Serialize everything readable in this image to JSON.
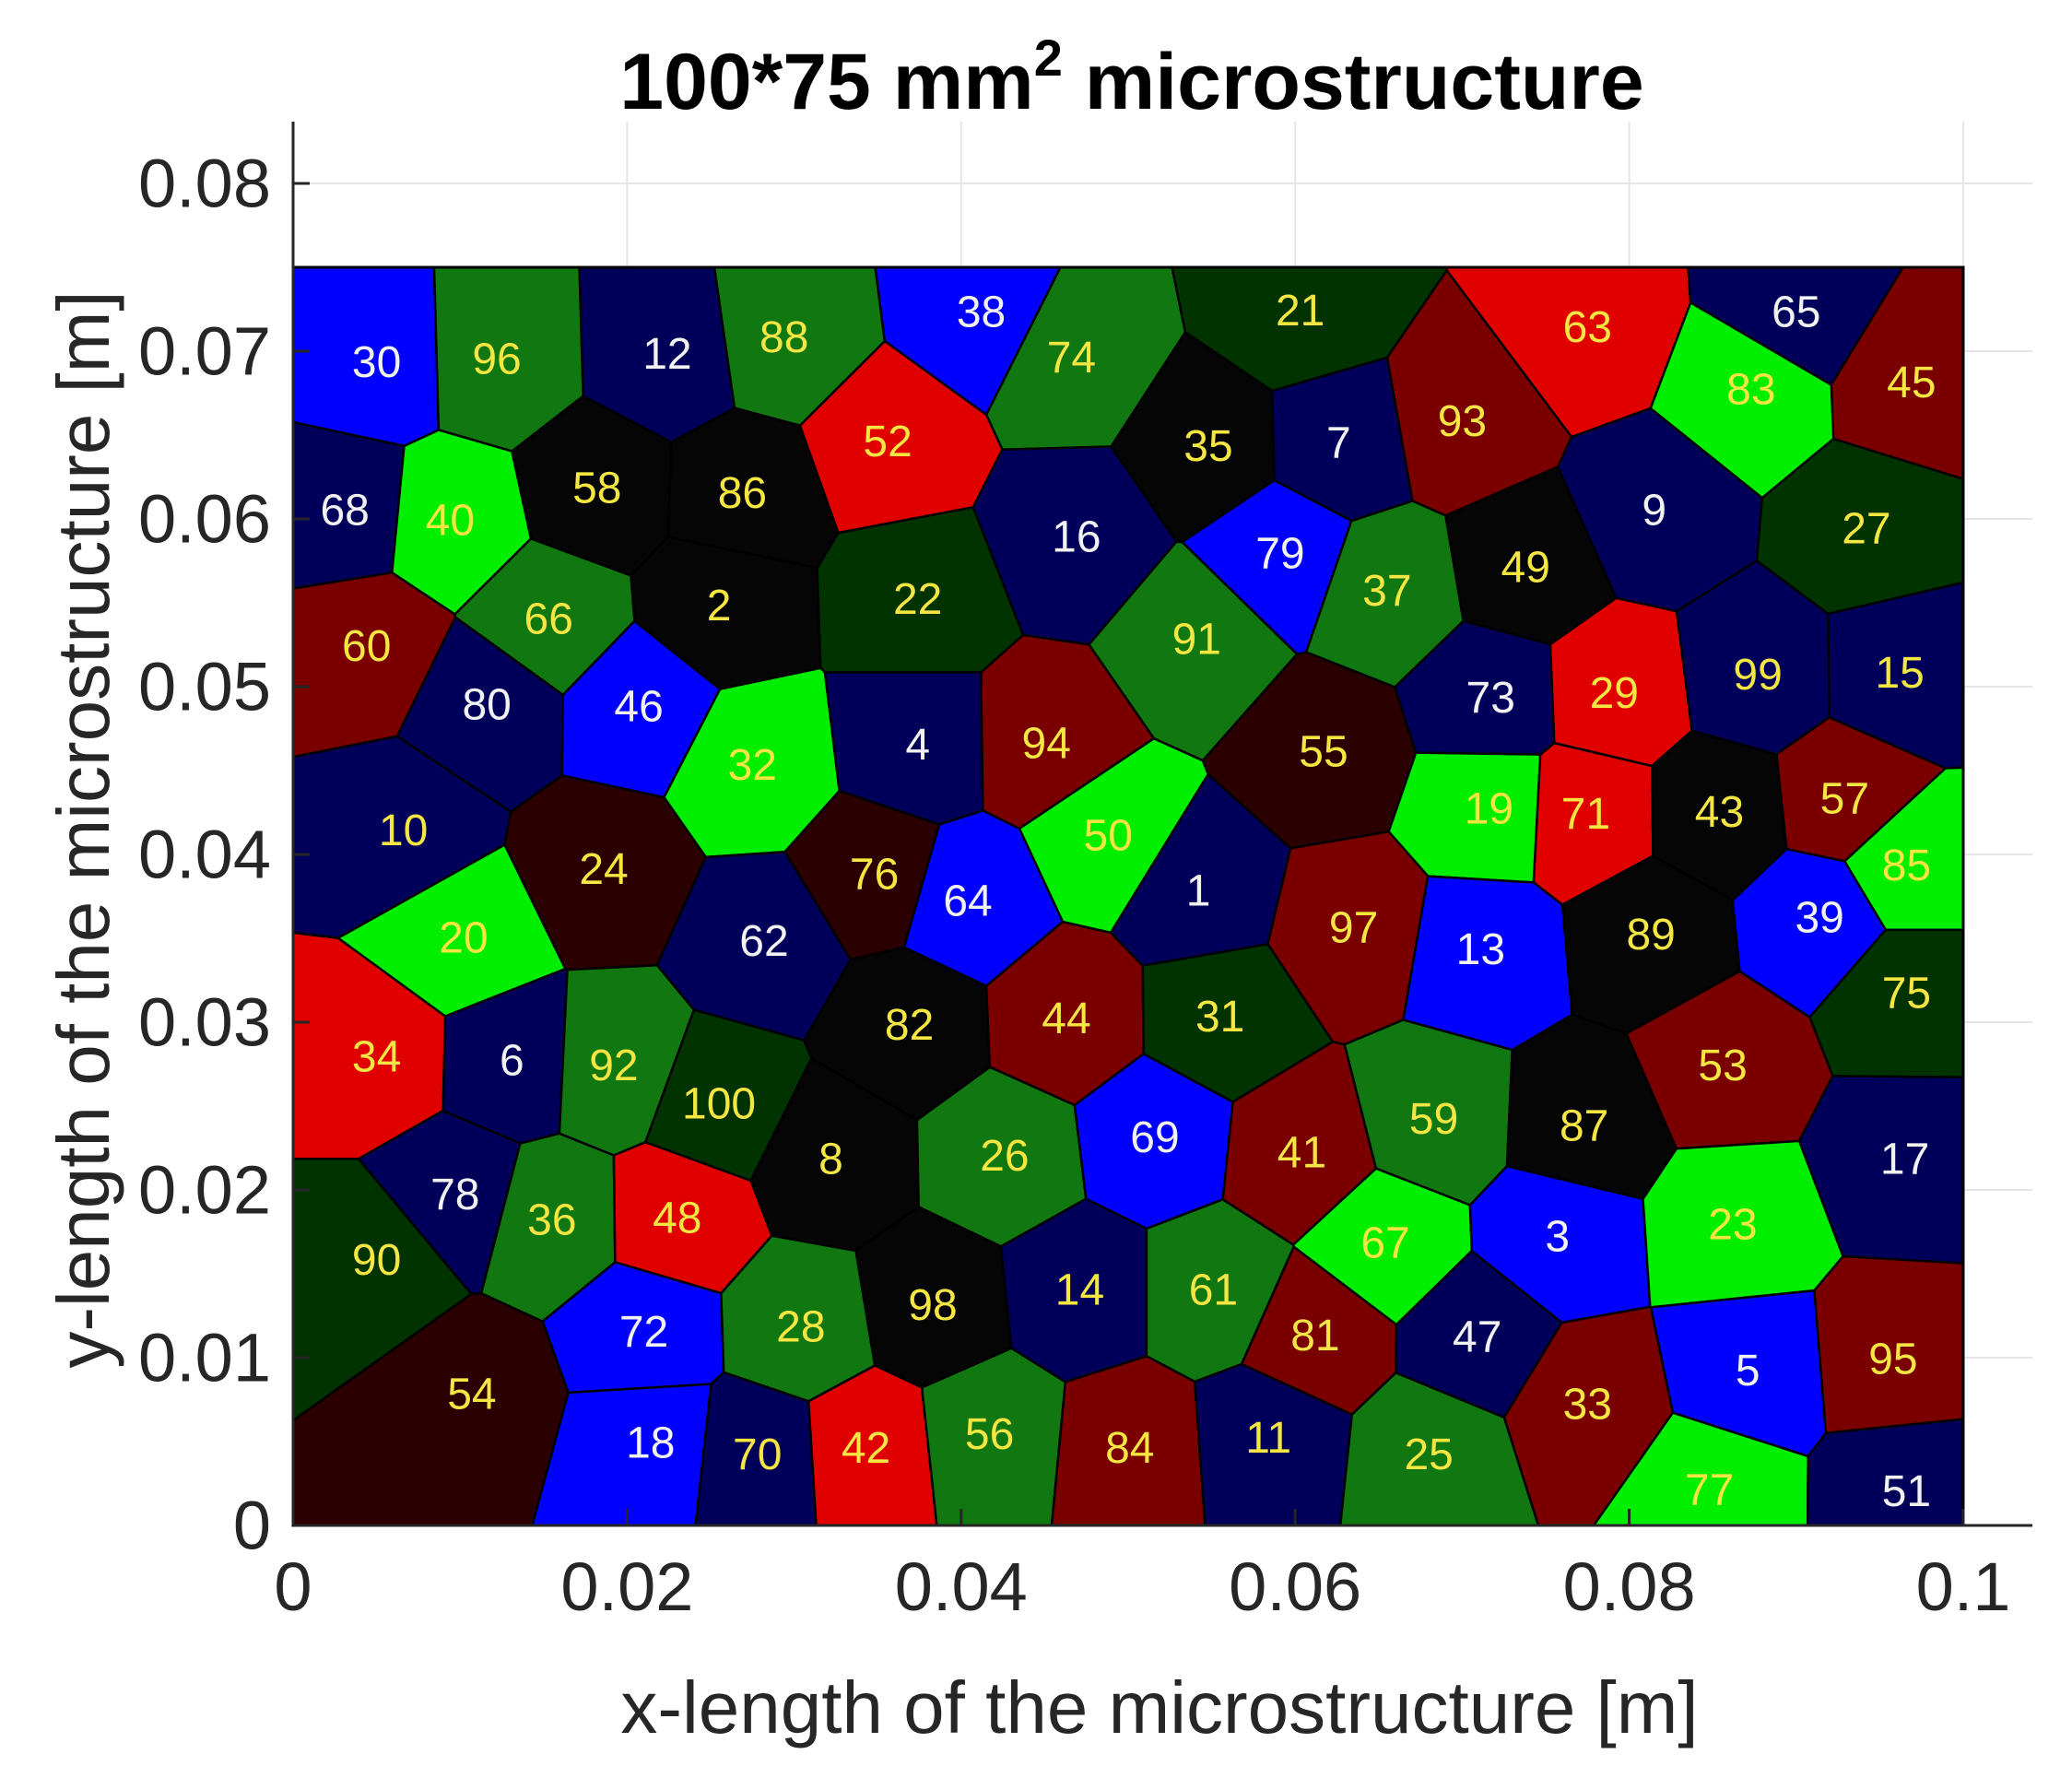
{
  "chart_data": {
    "type": "voronoi-map",
    "title": {
      "main": "100*75 mm",
      "superscript": "2",
      "rest": " microstructure"
    },
    "xlabel": "x-length of the microstructure [m]",
    "ylabel": "y-length of the microstructure [m]",
    "xlim": [
      0,
      0.1
    ],
    "ylim": [
      0,
      0.083
    ],
    "domain": {
      "x": [
        0,
        0.1
      ],
      "y": [
        0,
        0.075
      ]
    },
    "grid": true,
    "x_ticks": [
      {
        "value": 0,
        "label": "0"
      },
      {
        "value": 0.02,
        "label": "0.02"
      },
      {
        "value": 0.04,
        "label": "0.04"
      },
      {
        "value": 0.06,
        "label": "0.06"
      },
      {
        "value": 0.08,
        "label": "0.08"
      },
      {
        "value": 0.1,
        "label": "0.1"
      }
    ],
    "y_ticks": [
      {
        "value": 0,
        "label": "0"
      },
      {
        "value": 0.01,
        "label": "0.01"
      },
      {
        "value": 0.02,
        "label": "0.02"
      },
      {
        "value": 0.03,
        "label": "0.03"
      },
      {
        "value": 0.04,
        "label": "0.04"
      },
      {
        "value": 0.05,
        "label": "0.05"
      },
      {
        "value": 0.06,
        "label": "0.06"
      },
      {
        "value": 0.07,
        "label": "0.07"
      },
      {
        "value": 0.08,
        "label": "0.08"
      }
    ],
    "palette": {
      "blue": "#0000ff",
      "navy": "#00005a",
      "red": "#e00000",
      "maroon": "#7a0000",
      "lime": "#00ee00",
      "green": "#117711",
      "darkgreen": "#003300",
      "black": "#050505",
      "darkbrown": "#2a0000"
    },
    "label_colors": {
      "light": "#f2f2f2",
      "yellow": "#f5e642"
    },
    "grain_edge_color": "#000000",
    "grains": [
      {
        "id": "30",
        "x": 0.005,
        "y": 0.0693,
        "color": "blue",
        "text": "light"
      },
      {
        "id": "96",
        "x": 0.0122,
        "y": 0.0695,
        "color": "green",
        "text": "yellow"
      },
      {
        "id": "12",
        "x": 0.0224,
        "y": 0.0698,
        "color": "navy",
        "text": "light"
      },
      {
        "id": "88",
        "x": 0.0294,
        "y": 0.0708,
        "color": "green",
        "text": "yellow"
      },
      {
        "id": "38",
        "x": 0.0412,
        "y": 0.0723,
        "color": "blue",
        "text": "light"
      },
      {
        "id": "74",
        "x": 0.0466,
        "y": 0.0696,
        "color": "green",
        "text": "yellow"
      },
      {
        "id": "21",
        "x": 0.0603,
        "y": 0.0724,
        "color": "darkgreen",
        "text": "yellow"
      },
      {
        "id": "63",
        "x": 0.0775,
        "y": 0.0714,
        "color": "red",
        "text": "yellow"
      },
      {
        "id": "65",
        "x": 0.09,
        "y": 0.0723,
        "color": "navy",
        "text": "light"
      },
      {
        "id": "45",
        "x": 0.0969,
        "y": 0.0681,
        "color": "maroon",
        "text": "yellow"
      },
      {
        "id": "68",
        "x": 0.0031,
        "y": 0.0605,
        "color": "navy",
        "text": "light"
      },
      {
        "id": "40",
        "x": 0.0094,
        "y": 0.0599,
        "color": "lime",
        "text": "yellow"
      },
      {
        "id": "58",
        "x": 0.0182,
        "y": 0.0618,
        "color": "black",
        "text": "yellow"
      },
      {
        "id": "86",
        "x": 0.0269,
        "y": 0.0615,
        "color": "black",
        "text": "yellow"
      },
      {
        "id": "52",
        "x": 0.0356,
        "y": 0.0646,
        "color": "red",
        "text": "yellow"
      },
      {
        "id": "16",
        "x": 0.0469,
        "y": 0.0589,
        "color": "navy",
        "text": "light"
      },
      {
        "id": "35",
        "x": 0.0548,
        "y": 0.0643,
        "color": "black",
        "text": "yellow"
      },
      {
        "id": "7",
        "x": 0.0626,
        "y": 0.0645,
        "color": "navy",
        "text": "light"
      },
      {
        "id": "93",
        "x": 0.07,
        "y": 0.0658,
        "color": "maroon",
        "text": "yellow"
      },
      {
        "id": "9",
        "x": 0.0815,
        "y": 0.0605,
        "color": "navy",
        "text": "light"
      },
      {
        "id": "83",
        "x": 0.0873,
        "y": 0.0677,
        "color": "lime",
        "text": "yellow"
      },
      {
        "id": "27",
        "x": 0.0942,
        "y": 0.0594,
        "color": "darkgreen",
        "text": "yellow"
      },
      {
        "id": "60",
        "x": 0.0044,
        "y": 0.0524,
        "color": "maroon",
        "text": "yellow"
      },
      {
        "id": "66",
        "x": 0.0153,
        "y": 0.054,
        "color": "green",
        "text": "yellow"
      },
      {
        "id": "2",
        "x": 0.0255,
        "y": 0.0548,
        "color": "black",
        "text": "yellow"
      },
      {
        "id": "22",
        "x": 0.0374,
        "y": 0.0552,
        "color": "darkgreen",
        "text": "yellow"
      },
      {
        "id": "79",
        "x": 0.0591,
        "y": 0.0579,
        "color": "blue",
        "text": "light"
      },
      {
        "id": "37",
        "x": 0.0655,
        "y": 0.0557,
        "color": "green",
        "text": "yellow"
      },
      {
        "id": "49",
        "x": 0.0738,
        "y": 0.0571,
        "color": "black",
        "text": "yellow"
      },
      {
        "id": "91",
        "x": 0.0541,
        "y": 0.0528,
        "color": "green",
        "text": "yellow"
      },
      {
        "id": "80",
        "x": 0.0116,
        "y": 0.0489,
        "color": "navy",
        "text": "light"
      },
      {
        "id": "46",
        "x": 0.0207,
        "y": 0.0488,
        "color": "blue",
        "text": "light"
      },
      {
        "id": "32",
        "x": 0.0275,
        "y": 0.0453,
        "color": "lime",
        "text": "yellow"
      },
      {
        "id": "4",
        "x": 0.0374,
        "y": 0.0465,
        "color": "navy",
        "text": "light"
      },
      {
        "id": "94",
        "x": 0.0451,
        "y": 0.0466,
        "color": "maroon",
        "text": "yellow"
      },
      {
        "id": "55",
        "x": 0.0617,
        "y": 0.0461,
        "color": "darkbrown",
        "text": "yellow"
      },
      {
        "id": "73",
        "x": 0.0717,
        "y": 0.0493,
        "color": "navy",
        "text": "light"
      },
      {
        "id": "29",
        "x": 0.0791,
        "y": 0.0496,
        "color": "red",
        "text": "yellow"
      },
      {
        "id": "99",
        "x": 0.0877,
        "y": 0.0507,
        "color": "navy",
        "text": "yellow"
      },
      {
        "id": "15",
        "x": 0.0962,
        "y": 0.0508,
        "color": "navy",
        "text": "yellow"
      },
      {
        "id": "10",
        "x": 0.0066,
        "y": 0.0414,
        "color": "navy",
        "text": "yellow"
      },
      {
        "id": "24",
        "x": 0.0186,
        "y": 0.0391,
        "color": "darkbrown",
        "text": "yellow"
      },
      {
        "id": "76",
        "x": 0.0348,
        "y": 0.0388,
        "color": "darkbrown",
        "text": "yellow"
      },
      {
        "id": "50",
        "x": 0.0488,
        "y": 0.0411,
        "color": "lime",
        "text": "yellow"
      },
      {
        "id": "19",
        "x": 0.0716,
        "y": 0.0427,
        "color": "lime",
        "text": "yellow"
      },
      {
        "id": "71",
        "x": 0.0774,
        "y": 0.0424,
        "color": "red",
        "text": "yellow"
      },
      {
        "id": "43",
        "x": 0.0854,
        "y": 0.0425,
        "color": "black",
        "text": "yellow"
      },
      {
        "id": "57",
        "x": 0.0929,
        "y": 0.0433,
        "color": "maroon",
        "text": "yellow"
      },
      {
        "id": "85",
        "x": 0.0966,
        "y": 0.0393,
        "color": "lime",
        "text": "yellow"
      },
      {
        "id": "20",
        "x": 0.0102,
        "y": 0.035,
        "color": "lime",
        "text": "yellow"
      },
      {
        "id": "62",
        "x": 0.0282,
        "y": 0.0348,
        "color": "navy",
        "text": "light"
      },
      {
        "id": "64",
        "x": 0.0404,
        "y": 0.0372,
        "color": "blue",
        "text": "light"
      },
      {
        "id": "1",
        "x": 0.0542,
        "y": 0.0378,
        "color": "navy",
        "text": "light"
      },
      {
        "id": "97",
        "x": 0.0635,
        "y": 0.0356,
        "color": "maroon",
        "text": "yellow"
      },
      {
        "id": "13",
        "x": 0.0711,
        "y": 0.0343,
        "color": "blue",
        "text": "light"
      },
      {
        "id": "89",
        "x": 0.0813,
        "y": 0.0352,
        "color": "black",
        "text": "yellow"
      },
      {
        "id": "39",
        "x": 0.0914,
        "y": 0.0362,
        "color": "blue",
        "text": "light"
      },
      {
        "id": "75",
        "x": 0.0966,
        "y": 0.0317,
        "color": "darkgreen",
        "text": "yellow"
      },
      {
        "id": "34",
        "x": 0.005,
        "y": 0.0279,
        "color": "red",
        "text": "yellow"
      },
      {
        "id": "6",
        "x": 0.0131,
        "y": 0.0277,
        "color": "navy",
        "text": "light"
      },
      {
        "id": "92",
        "x": 0.0192,
        "y": 0.0274,
        "color": "green",
        "text": "yellow"
      },
      {
        "id": "82",
        "x": 0.0369,
        "y": 0.0298,
        "color": "black",
        "text": "yellow"
      },
      {
        "id": "44",
        "x": 0.0463,
        "y": 0.0302,
        "color": "maroon",
        "text": "yellow"
      },
      {
        "id": "31",
        "x": 0.0555,
        "y": 0.0303,
        "color": "darkgreen",
        "text": "yellow"
      },
      {
        "id": "53",
        "x": 0.0856,
        "y": 0.0274,
        "color": "maroon",
        "text": "yellow"
      },
      {
        "id": "100",
        "x": 0.0255,
        "y": 0.0251,
        "color": "darkgreen",
        "text": "yellow"
      },
      {
        "id": "8",
        "x": 0.0322,
        "y": 0.0218,
        "color": "black",
        "text": "yellow"
      },
      {
        "id": "26",
        "x": 0.0426,
        "y": 0.022,
        "color": "green",
        "text": "yellow"
      },
      {
        "id": "69",
        "x": 0.0516,
        "y": 0.0231,
        "color": "blue",
        "text": "light"
      },
      {
        "id": "41",
        "x": 0.0604,
        "y": 0.0222,
        "color": "maroon",
        "text": "yellow"
      },
      {
        "id": "59",
        "x": 0.0683,
        "y": 0.0242,
        "color": "green",
        "text": "yellow"
      },
      {
        "id": "87",
        "x": 0.0773,
        "y": 0.0238,
        "color": "black",
        "text": "yellow"
      },
      {
        "id": "17",
        "x": 0.0965,
        "y": 0.0218,
        "color": "navy",
        "text": "light"
      },
      {
        "id": "78",
        "x": 0.0097,
        "y": 0.0197,
        "color": "navy",
        "text": "light"
      },
      {
        "id": "36",
        "x": 0.0155,
        "y": 0.0182,
        "color": "green",
        "text": "yellow"
      },
      {
        "id": "48",
        "x": 0.023,
        "y": 0.0183,
        "color": "red",
        "text": "yellow"
      },
      {
        "id": "67",
        "x": 0.0654,
        "y": 0.0168,
        "color": "lime",
        "text": "yellow"
      },
      {
        "id": "3",
        "x": 0.0757,
        "y": 0.0172,
        "color": "blue",
        "text": "light"
      },
      {
        "id": "23",
        "x": 0.0862,
        "y": 0.0179,
        "color": "lime",
        "text": "yellow"
      },
      {
        "id": "90",
        "x": 0.005,
        "y": 0.0158,
        "color": "darkgreen",
        "text": "yellow"
      },
      {
        "id": "72",
        "x": 0.021,
        "y": 0.0115,
        "color": "blue",
        "text": "light"
      },
      {
        "id": "28",
        "x": 0.0304,
        "y": 0.0118,
        "color": "green",
        "text": "yellow"
      },
      {
        "id": "98",
        "x": 0.0383,
        "y": 0.0131,
        "color": "black",
        "text": "yellow"
      },
      {
        "id": "14",
        "x": 0.0471,
        "y": 0.014,
        "color": "navy",
        "text": "yellow"
      },
      {
        "id": "61",
        "x": 0.0551,
        "y": 0.014,
        "color": "green",
        "text": "yellow"
      },
      {
        "id": "81",
        "x": 0.0612,
        "y": 0.0113,
        "color": "maroon",
        "text": "yellow"
      },
      {
        "id": "47",
        "x": 0.0709,
        "y": 0.0112,
        "color": "navy",
        "text": "light"
      },
      {
        "id": "5",
        "x": 0.0871,
        "y": 0.0092,
        "color": "blue",
        "text": "light"
      },
      {
        "id": "95",
        "x": 0.0958,
        "y": 0.0099,
        "color": "maroon",
        "text": "yellow"
      },
      {
        "id": "54",
        "x": 0.0107,
        "y": 0.0078,
        "color": "darkbrown",
        "text": "yellow"
      },
      {
        "id": "18",
        "x": 0.0214,
        "y": 0.0049,
        "color": "blue",
        "text": "light"
      },
      {
        "id": "70",
        "x": 0.0278,
        "y": 0.0042,
        "color": "navy",
        "text": "yellow"
      },
      {
        "id": "42",
        "x": 0.0343,
        "y": 0.0046,
        "color": "red",
        "text": "yellow"
      },
      {
        "id": "56",
        "x": 0.0417,
        "y": 0.0054,
        "color": "green",
        "text": "yellow"
      },
      {
        "id": "84",
        "x": 0.0501,
        "y": 0.0046,
        "color": "maroon",
        "text": "yellow"
      },
      {
        "id": "11",
        "x": 0.0584,
        "y": 0.0052,
        "color": "navy",
        "text": "yellow"
      },
      {
        "id": "25",
        "x": 0.068,
        "y": 0.0042,
        "color": "green",
        "text": "yellow"
      },
      {
        "id": "33",
        "x": 0.0775,
        "y": 0.0072,
        "color": "maroon",
        "text": "yellow"
      },
      {
        "id": "77",
        "x": 0.0848,
        "y": 0.0021,
        "color": "lime",
        "text": "yellow"
      },
      {
        "id": "51",
        "x": 0.0966,
        "y": 0.002,
        "color": "navy",
        "text": "light"
      }
    ]
  }
}
